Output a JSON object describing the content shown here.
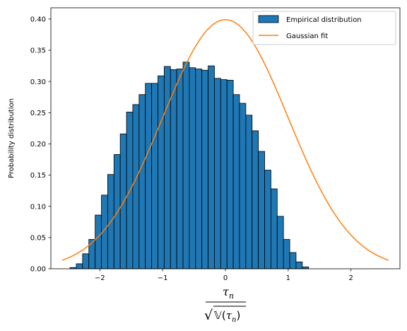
{
  "chart_data": {
    "type": "bar",
    "title": "",
    "ylabel": "Probability distribution",
    "xlabel": {
      "numerator": "τ",
      "numerator_sub": "n",
      "denominator_prefix": "√",
      "denominator_fn": "𝕍",
      "denominator_open": "(",
      "denominator_var": "τ",
      "denominator_sub": "n",
      "denominator_close": ")"
    },
    "xlim": [
      -2.78,
      2.78
    ],
    "ylim": [
      0,
      0.418
    ],
    "xticks": [
      -2,
      -1,
      0,
      1,
      2
    ],
    "xtick_labels": [
      "−2",
      "−1",
      "0",
      "1",
      "2"
    ],
    "yticks": [
      0.0,
      0.05,
      0.1,
      0.15,
      0.2,
      0.25,
      0.3,
      0.35,
      0.4
    ],
    "ytick_labels": [
      "0.00",
      "0.05",
      "0.10",
      "0.15",
      "0.20",
      "0.25",
      "0.30",
      "0.35",
      "0.40"
    ],
    "grid": false,
    "legend_position": "top-right",
    "histogram": {
      "name": "Empirical distribution",
      "color": "#1f77b4",
      "edge_color": "#000000",
      "bin_start": -2.475,
      "bin_width": 0.1,
      "values": [
        0.002,
        0.008,
        0.024,
        0.047,
        0.086,
        0.118,
        0.151,
        0.183,
        0.216,
        0.251,
        0.263,
        0.279,
        0.297,
        0.297,
        0.309,
        0.324,
        0.319,
        0.32,
        0.331,
        0.322,
        0.32,
        0.318,
        0.325,
        0.305,
        0.303,
        0.302,
        0.279,
        0.265,
        0.246,
        0.221,
        0.188,
        0.158,
        0.128,
        0.084,
        0.047,
        0.026,
        0.011,
        0.003
      ]
    },
    "fit": {
      "name": "Gaussian fit",
      "color": "#ff7f0e",
      "mean": 0,
      "std": 1,
      "x_range": [
        -2.6,
        2.6
      ]
    }
  }
}
